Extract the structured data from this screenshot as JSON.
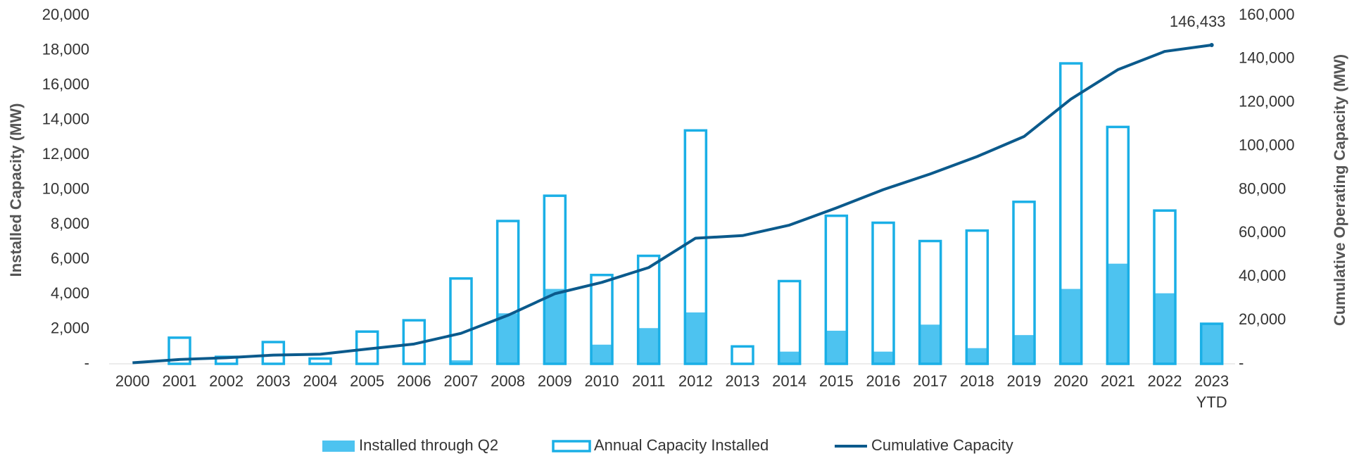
{
  "chart_data": {
    "type": "bar",
    "categories": [
      "2000",
      "2001",
      "2002",
      "2003",
      "2004",
      "2005",
      "2006",
      "2007",
      "2008",
      "2009",
      "2010",
      "2011",
      "2012",
      "2013",
      "2014",
      "2015",
      "2016",
      "2017",
      "2018",
      "2019",
      "2020",
      "2021",
      "2022",
      "2023\nYTD"
    ],
    "series": [
      {
        "name": "Installed through Q2",
        "type": "bar",
        "color": "#4dc3f0",
        "values": [
          0,
          0,
          0,
          0,
          0,
          0,
          0,
          200,
          2900,
          4300,
          1100,
          2050,
          2950,
          0,
          700,
          1900,
          700,
          2250,
          900,
          1650,
          4300,
          5750,
          4050,
          2300
        ]
      },
      {
        "name": "Annual Capacity Installed",
        "type": "bar-outline",
        "color": "#1aafe6",
        "values": [
          0,
          1500,
          400,
          1250,
          300,
          1850,
          2500,
          4900,
          8200,
          9650,
          5100,
          6200,
          13400,
          1000,
          4750,
          8500,
          8100,
          7050,
          7650,
          9300,
          17250,
          13600,
          8800,
          2300
        ]
      },
      {
        "name": "Cumulative Capacity",
        "type": "line",
        "axis": "y2",
        "color": "#0b5a8c",
        "values": [
          500,
          2000,
          2800,
          4000,
          4400,
          6800,
          9100,
          14000,
          22300,
          32200,
          37400,
          44200,
          57700,
          58900,
          63700,
          71600,
          80000,
          87200,
          95200,
          104400,
          121600,
          135100,
          143500,
          146433
        ],
        "value_labels": [
          null,
          null,
          null,
          null,
          null,
          null,
          null,
          null,
          null,
          null,
          null,
          null,
          null,
          null,
          null,
          null,
          null,
          null,
          null,
          null,
          null,
          null,
          null,
          "146,433"
        ]
      }
    ],
    "ylabel": "Installed Capacity (MW)",
    "y2label": "Cumulative Operating Capacity (MW)",
    "ylim": [
      0,
      20000
    ],
    "yticks": [
      {
        "value": 0,
        "label": "-"
      },
      {
        "value": 2000,
        "label": "2,000"
      },
      {
        "value": 4000,
        "label": "4,000"
      },
      {
        "value": 6000,
        "label": "6,000"
      },
      {
        "value": 8000,
        "label": "8,000"
      },
      {
        "value": 10000,
        "label": "10,000"
      },
      {
        "value": 12000,
        "label": "12,000"
      },
      {
        "value": 14000,
        "label": "14,000"
      },
      {
        "value": 16000,
        "label": "16,000"
      },
      {
        "value": 18000,
        "label": "18,000"
      },
      {
        "value": 20000,
        "label": "20,000"
      }
    ],
    "y2lim": [
      0,
      160000
    ],
    "y2ticks": [
      {
        "value": 0,
        "label": "-"
      },
      {
        "value": 20000,
        "label": "20,000"
      },
      {
        "value": 40000,
        "label": "40,000"
      },
      {
        "value": 60000,
        "label": "60,000"
      },
      {
        "value": 80000,
        "label": "80,000"
      },
      {
        "value": 100000,
        "label": "100,000"
      },
      {
        "value": 120000,
        "label": "120,000"
      },
      {
        "value": 140000,
        "label": "140,000"
      },
      {
        "value": 160000,
        "label": "160,000"
      }
    ],
    "grid": false,
    "legend": "bottom"
  }
}
